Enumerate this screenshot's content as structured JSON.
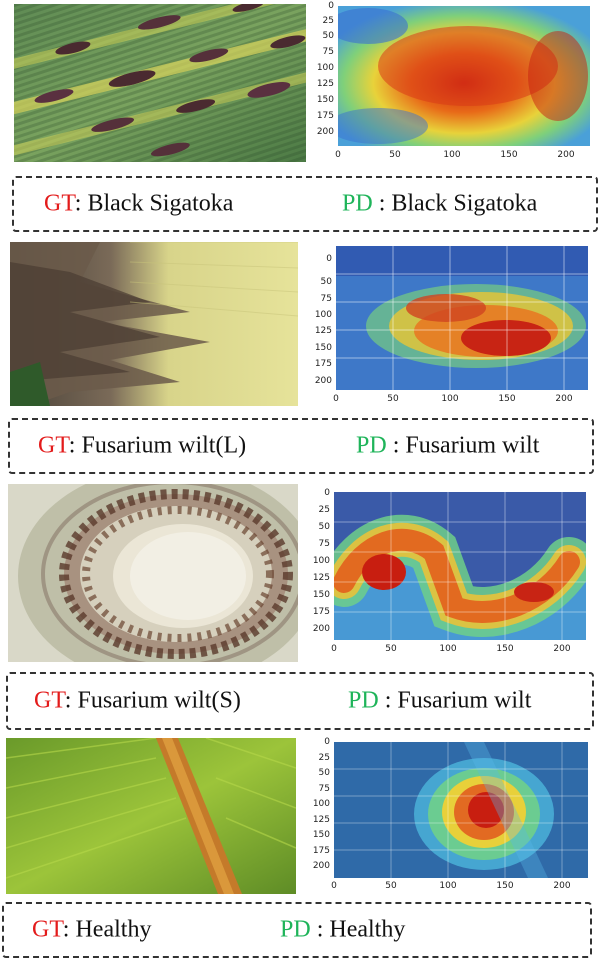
{
  "legend": {
    "gt_key": "GT",
    "pd_key": "PD"
  },
  "axes": {
    "y_ticks": [
      "0",
      "25",
      "50",
      "75",
      "100",
      "125",
      "150",
      "175",
      "200"
    ],
    "x_ticks": [
      "0",
      "50",
      "100",
      "150",
      "200"
    ]
  },
  "panels": [
    {
      "gt_sep": ": ",
      "gt_value": "Black Sigatoka",
      "pd_sep": " : ",
      "pd_value": "Black Sigatoka"
    },
    {
      "gt_sep": ": ",
      "gt_value": "Fusarium wilt(L)",
      "pd_sep": " : ",
      "pd_value": "Fusarium wilt"
    },
    {
      "gt_sep": ": ",
      "gt_value": "Fusarium wilt(S)",
      "pd_sep": " : ",
      "pd_value": "Fusarium wilt"
    },
    {
      "gt_sep": ": ",
      "gt_value": "Healthy",
      "pd_sep": " : ",
      "pd_value": "Healthy"
    }
  ],
  "colors": {
    "gt": "#e31b1b",
    "pd": "#1fb45a"
  }
}
